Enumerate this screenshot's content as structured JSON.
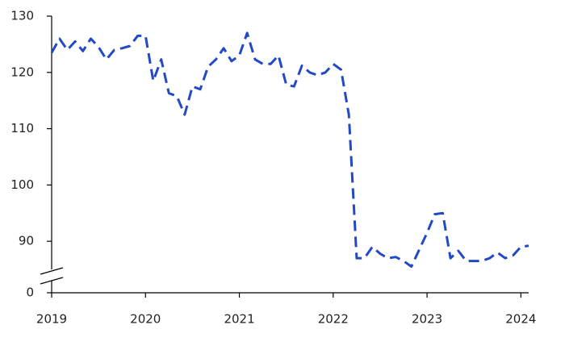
{
  "chart_data": {
    "type": "line",
    "axis_break": true,
    "x": [
      2019,
      2019.083,
      2019.167,
      2019.25,
      2019.333,
      2019.417,
      2019.5,
      2019.583,
      2019.667,
      2019.75,
      2019.833,
      2019.917,
      2020,
      2020.083,
      2020.167,
      2020.25,
      2020.333,
      2020.417,
      2020.5,
      2020.583,
      2020.667,
      2020.75,
      2020.833,
      2020.917,
      2021,
      2021.083,
      2021.167,
      2021.25,
      2021.333,
      2021.417,
      2021.5,
      2021.583,
      2021.667,
      2021.75,
      2021.833,
      2021.917,
      2022,
      2022.083,
      2022.167,
      2022.25,
      2022.333,
      2022.417,
      2022.5,
      2022.583,
      2022.667,
      2022.75,
      2022.833,
      2022.917,
      2023,
      2023.083,
      2023.167,
      2023.25,
      2023.333,
      2023.417,
      2023.5,
      2023.583,
      2023.667,
      2023.75,
      2023.833,
      2023.917,
      2024,
      2024.083
    ],
    "series": [
      {
        "color": "#2349c4",
        "values": [
          123.5,
          126,
          124,
          125.5,
          123.8,
          126,
          124.5,
          122.3,
          124,
          124.3,
          124.7,
          126.5,
          126.5,
          118.5,
          122.3,
          116.3,
          115.8,
          112.5,
          117.5,
          117,
          121,
          122.3,
          124.3,
          122,
          123,
          127,
          122.3,
          121.5,
          121.5,
          123,
          117.8,
          117.5,
          121.2,
          120,
          119.5,
          120,
          121.5,
          120.5,
          112.5,
          87,
          87,
          89,
          87.8,
          87,
          87.2,
          86.5,
          85.5,
          88.5,
          91.5,
          94.8,
          95,
          87,
          88.3,
          86.5,
          86.5,
          86.5,
          87,
          88,
          87,
          87.5,
          89,
          89.2
        ]
      }
    ],
    "xlim": [
      2019,
      2024.083
    ],
    "xticks": [
      2019,
      2020,
      2021,
      2022,
      2023,
      2024
    ],
    "ylim": [
      84,
      130
    ],
    "yticks": [
      0,
      90,
      100,
      110,
      120,
      130
    ]
  }
}
